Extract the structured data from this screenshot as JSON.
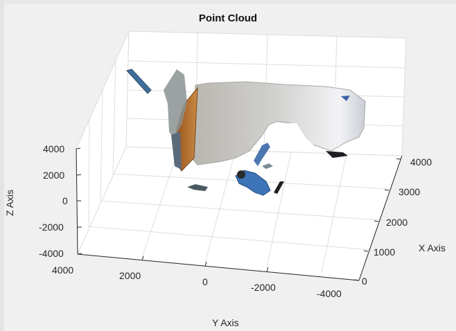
{
  "figure": {
    "title": "Point Cloud"
  },
  "axes": {
    "xlabel": "X Axis",
    "ylabel": "Y Axis",
    "zlabel": "Z Axis",
    "x_ticks": [
      "0",
      "1000",
      "2000",
      "3000",
      "4000"
    ],
    "y_ticks": [
      "4000",
      "2000",
      "0",
      "-2000",
      "-4000"
    ],
    "z_ticks": [
      "4000",
      "2000",
      "0",
      "-2000",
      "-4000"
    ],
    "xlim": [
      0,
      4000
    ],
    "ylim": [
      -4000,
      4000
    ],
    "zlim": [
      -4000,
      4000
    ],
    "grid": true,
    "box": true
  },
  "colors": {
    "background": "#f0f0f0",
    "axes_face": "#ffffff",
    "axis_line": "#262626",
    "grid": "#dcdcdc",
    "wall": "#c6c6c4",
    "wall_light": "#f4f4f6",
    "orange_door": "#b86a28",
    "person": "#3d74b8",
    "dark": "#1e1e22"
  },
  "chart_data": {
    "type": "scatter",
    "title": "Point Cloud",
    "xlabel": "X Axis",
    "ylabel": "Y Axis",
    "zlabel": "Z Axis",
    "xlim": [
      0,
      4000
    ],
    "ylim": [
      -4000,
      4000
    ],
    "zlim": [
      -4000,
      4000
    ],
    "grid": true,
    "segments": [
      {
        "name": "",
        "description_role": "wall"
      },
      {
        "name": "",
        "description_role": "door"
      },
      {
        "name": "",
        "description_role": "person"
      },
      {
        "name": "",
        "description_role": "fragments"
      }
    ]
  }
}
